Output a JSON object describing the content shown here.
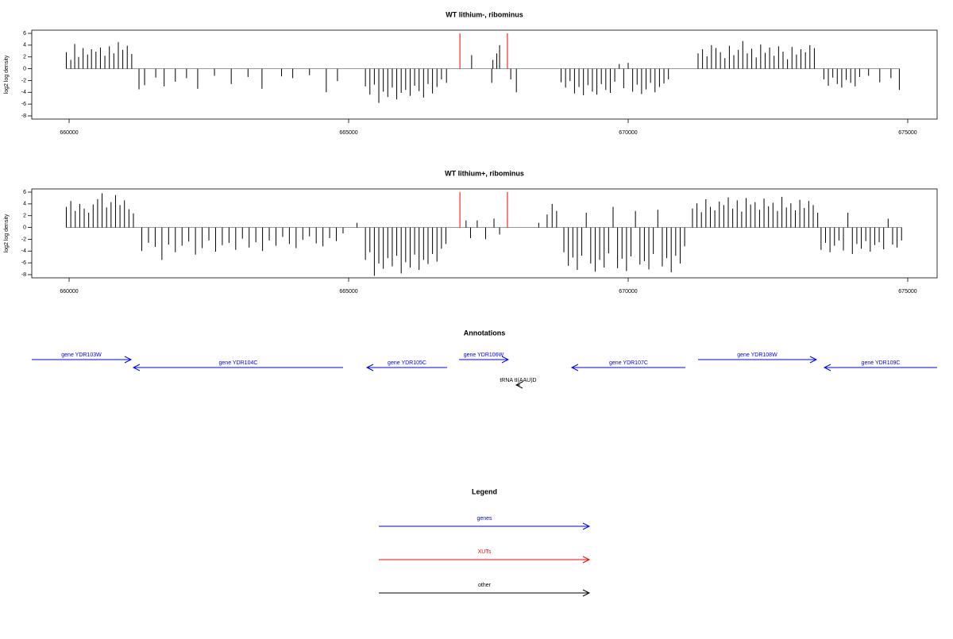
{
  "chart_data": [
    {
      "type": "bar",
      "title": "WT lithium-, ribominus",
      "ylabel": "log2 log density",
      "xlim": [
        659332,
        675526
      ],
      "ylim": [
        -8.54,
        6.54
      ],
      "xticks": [
        660000,
        665000,
        670000,
        675000
      ],
      "yticks": [
        6,
        4,
        2,
        0,
        -2,
        -4,
        -6,
        -8
      ],
      "series": [
        {
          "color": "#000000",
          "x": [
            659950,
            660030,
            660100,
            660170,
            660250,
            660330,
            660400,
            660480,
            660560,
            660640,
            660720,
            660800,
            660880,
            660960,
            661040,
            661120,
            661250,
            661350,
            661550,
            661700,
            661900,
            662100,
            662300,
            662600,
            662900,
            663200,
            663450,
            663800,
            664000,
            664300,
            664600,
            664800,
            665300,
            665380,
            665460,
            665540,
            665620,
            665700,
            665780,
            665860,
            665940,
            666020,
            666100,
            666180,
            666260,
            666340,
            666420,
            666500,
            666580,
            666660,
            666750,
            667200,
            667560,
            667580,
            667650,
            667700,
            667900,
            668000,
            668800,
            668880,
            668960,
            669040,
            669120,
            669200,
            669280,
            669360,
            669440,
            669520,
            669600,
            669680,
            669760,
            669840,
            669920,
            670000,
            670080,
            670160,
            670240,
            670320,
            670400,
            670480,
            670560,
            670640,
            670720,
            671250,
            671330,
            671410,
            671490,
            671570,
            671650,
            671730,
            671810,
            671890,
            671970,
            672050,
            672130,
            672210,
            672290,
            672370,
            672450,
            672530,
            672610,
            672690,
            672770,
            672850,
            672930,
            673010,
            673090,
            673170,
            673250,
            673330,
            673500,
            673580,
            673660,
            673740,
            673820,
            673900,
            673980,
            674060,
            674140,
            674300,
            674500,
            674700,
            674850
          ],
          "values": [
            2.8,
            1.5,
            4.2,
            2,
            3.5,
            2.4,
            3.3,
            2.9,
            3.6,
            2.2,
            3.8,
            2.6,
            4.5,
            3.2,
            3.9,
            2.5,
            -3.5,
            -2.8,
            -1.5,
            -3,
            -2.2,
            -1.6,
            -3.4,
            -1.2,
            -2.6,
            -1.4,
            -3.4,
            -1.3,
            -1.6,
            -1.1,
            -4,
            -2.1,
            -3,
            -4.4,
            -2.7,
            -5.8,
            -3.9,
            -4.8,
            -3.2,
            -5.2,
            -4.1,
            -3.6,
            -4.6,
            -2.9,
            -3.8,
            -4.9,
            -2.6,
            -4.2,
            -3.1,
            -1.8,
            -2.4,
            2.3,
            -2.4,
            1.5,
            2.6,
            4,
            -1.8,
            -4,
            -2.3,
            -3.2,
            -2.1,
            -4.2,
            -3.1,
            -4.5,
            -2.8,
            -3.9,
            -4.4,
            -2.6,
            -3.6,
            -4.1,
            -2.2,
            0.8,
            -3.3,
            1,
            -3.9,
            -2.7,
            -4.3,
            -3.5,
            -2.4,
            -4,
            -3.1,
            -2.5,
            -1.8,
            2.6,
            3.3,
            2.1,
            4,
            3.5,
            2.8,
            1.8,
            3.9,
            2.3,
            3.2,
            4.7,
            2.6,
            3.4,
            1.9,
            4.1,
            2.7,
            3.6,
            2.2,
            3.8,
            2.9,
            1.6,
            3.7,
            2.4,
            3.3,
            2.8,
            4,
            3.5,
            -1.8,
            -2.9,
            -1.5,
            -2.6,
            -3.2,
            -1.9,
            -2.4,
            -3,
            -1.4,
            -1.2,
            -2.3,
            -1.6,
            -3.6
          ]
        },
        {
          "color": "#ff0000",
          "x": [
            666990,
            667840
          ],
          "values": [
            6,
            6
          ]
        }
      ]
    },
    {
      "type": "bar",
      "title": "WT lithium+, ribominus",
      "ylabel": "log2 log density",
      "xlim": [
        659332,
        675526
      ],
      "ylim": [
        -8.54,
        6.54
      ],
      "xticks": [
        660000,
        665000,
        670000,
        675000
      ],
      "yticks": [
        6,
        4,
        2,
        0,
        -2,
        -4,
        -6,
        -8
      ],
      "series": [
        {
          "color": "#000000",
          "x": [
            659950,
            660030,
            660110,
            660190,
            660270,
            660350,
            660430,
            660510,
            660590,
            660670,
            660750,
            660830,
            660910,
            660990,
            661070,
            661150,
            661300,
            661420,
            661540,
            661660,
            661780,
            661900,
            662020,
            662140,
            662260,
            662380,
            662500,
            662620,
            662740,
            662860,
            662980,
            663100,
            663220,
            663340,
            663460,
            663580,
            663700,
            663820,
            663940,
            664060,
            664180,
            664300,
            664420,
            664540,
            664660,
            664780,
            664900,
            665150,
            665300,
            665380,
            665460,
            665540,
            665620,
            665700,
            665780,
            665860,
            665940,
            666020,
            666100,
            666180,
            666260,
            666340,
            666420,
            666500,
            666580,
            666660,
            666740,
            667100,
            667180,
            667300,
            667450,
            667600,
            667700,
            668400,
            668550,
            668640,
            668720,
            668850,
            668930,
            669010,
            669090,
            669170,
            669250,
            669330,
            669410,
            669490,
            669570,
            669650,
            669730,
            669810,
            669890,
            669970,
            670050,
            670130,
            670210,
            670290,
            670370,
            670450,
            670530,
            670610,
            670690,
            670770,
            670850,
            670930,
            671010,
            671150,
            671230,
            671310,
            671390,
            671470,
            671550,
            671630,
            671710,
            671790,
            671870,
            671950,
            672030,
            672110,
            672190,
            672270,
            672350,
            672430,
            672510,
            672590,
            672670,
            672750,
            672830,
            672910,
            672990,
            673070,
            673150,
            673230,
            673310,
            673390,
            673450,
            673530,
            673610,
            673690,
            673770,
            673850,
            673930,
            674010,
            674090,
            674170,
            674250,
            674330,
            674410,
            674490,
            674570,
            674650,
            674730,
            674810,
            674890
          ],
          "values": [
            3.5,
            4.5,
            2.8,
            4,
            3.2,
            2.5,
            3.9,
            4.8,
            5.8,
            3.4,
            4.3,
            5.5,
            3.8,
            4.6,
            3.1,
            2.4,
            -4,
            -2.6,
            -3.3,
            -5.5,
            -2.9,
            -4.2,
            -3.1,
            -2.4,
            -4.6,
            -3.5,
            -2.2,
            -4.1,
            -3,
            -2.6,
            -3.8,
            -1.9,
            -3.4,
            -2.5,
            -4,
            -2.2,
            -3.1,
            -1.6,
            -2.8,
            -3.5,
            -2.1,
            -1.5,
            -2.7,
            -3.2,
            -1.8,
            -2.3,
            -1,
            0.8,
            -5.5,
            -4.2,
            -8.2,
            -6.1,
            -7,
            -5.2,
            -6.6,
            -4.8,
            -7.8,
            -5.9,
            -6.8,
            -4.6,
            -7.2,
            -5.5,
            -6.2,
            -4.5,
            -5.8,
            -3.6,
            -2.8,
            1.2,
            -1.8,
            1.2,
            -2,
            1.5,
            -1.2,
            0.8,
            2.2,
            4,
            2.8,
            -4.2,
            -6.5,
            -5.1,
            -7.2,
            -4.8,
            2.5,
            -6.1,
            -7.5,
            -5.5,
            -6.8,
            -4.4,
            3.5,
            -6.9,
            -5.3,
            -7.4,
            -4.9,
            2.8,
            -6.3,
            -5.7,
            -7.1,
            -4.5,
            3,
            -6.6,
            -5.2,
            -7.6,
            -4.8,
            -6.1,
            -3.2,
            3.2,
            4.1,
            2.6,
            4.8,
            3.5,
            2.9,
            4.4,
            3.8,
            5.1,
            3.2,
            4.6,
            2.7,
            5,
            3.9,
            4.3,
            3,
            4.9,
            3.6,
            4.2,
            2.8,
            5.2,
            3.4,
            4.1,
            2.9,
            4.7,
            3.3,
            4.5,
            3.8,
            2.5,
            -3.8,
            -2.6,
            -4.2,
            -3.1,
            -2.2,
            -3.9,
            2.5,
            -4.5,
            -2.8,
            -3.6,
            -2.3,
            -4.1,
            -3,
            -2.5,
            -3.7,
            1.5,
            -2.9,
            -3.4,
            -2.2
          ]
        },
        {
          "color": "#ff0000",
          "x": [
            666990,
            667840
          ],
          "values": [
            6,
            6
          ]
        }
      ]
    }
  ],
  "annotations": {
    "title": "Annotations",
    "features": [
      {
        "label": "gene YDR103W",
        "from": 659332,
        "to": 661108,
        "color": "#0000ff"
      },
      {
        "label": "gene YDR104C",
        "from": 664900,
        "to": 661150,
        "color": "#0000ff"
      },
      {
        "label": "gene YDR105C",
        "from": 666761,
        "to": 665327,
        "color": "#0000ff"
      },
      {
        "label": "gene YDR106W",
        "from": 666974,
        "to": 667855,
        "color": "#0000ff"
      },
      {
        "label": "gene YDR107C",
        "from": 671023,
        "to": 668991,
        "color": "#0000ff"
      },
      {
        "label": "gene YDR108W",
        "from": 671250,
        "to": 673366,
        "color": "#0000ff"
      },
      {
        "label": "gene YDR109C",
        "from": 675526,
        "to": 673509,
        "color": "#0000ff"
      },
      {
        "label": "tRNA tI(AAU)D",
        "from": 668068,
        "to": 667997,
        "color": "#000000"
      }
    ]
  },
  "legend": {
    "title": "Legend",
    "items": [
      {
        "label": "genes",
        "color": "#0000ff"
      },
      {
        "label": "XUTs",
        "color": "#ff0000"
      },
      {
        "label": "other",
        "color": "#000000"
      }
    ]
  }
}
